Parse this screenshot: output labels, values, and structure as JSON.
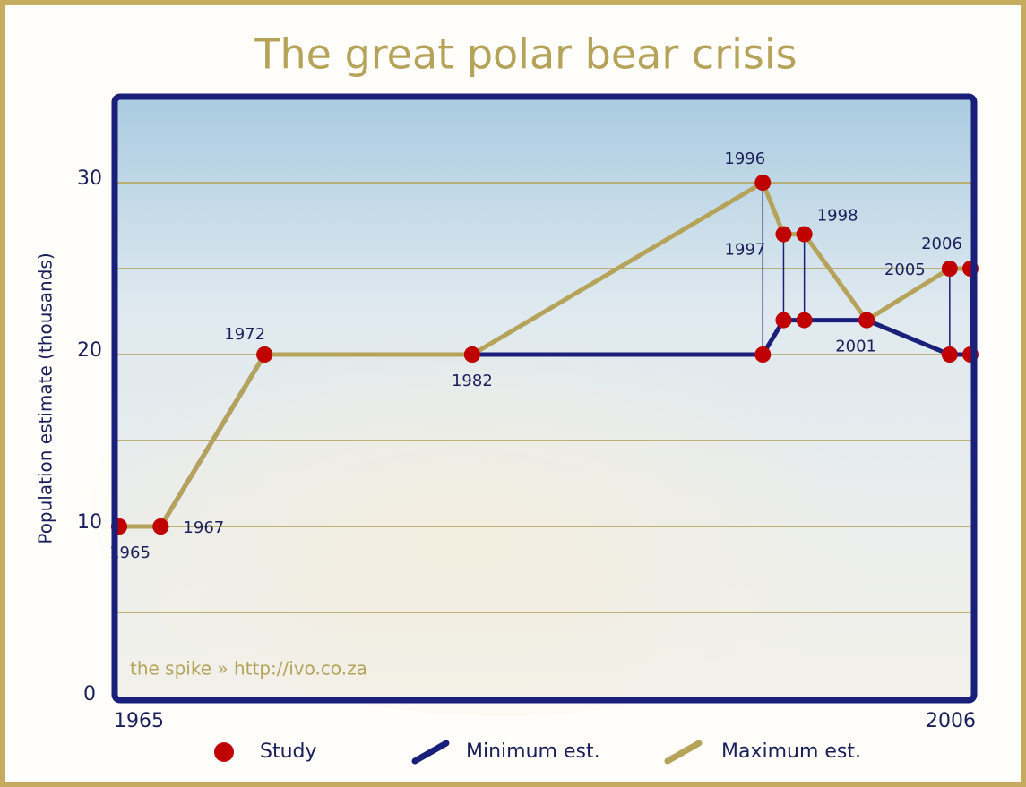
{
  "chart_data": {
    "type": "line",
    "title": "The great polar bear crisis",
    "y_label": "Population estimate (thousands)",
    "watermark": "the spike » http://ivo.co.za",
    "x": [
      1965,
      1967,
      1972,
      1982,
      1996,
      1997,
      1998,
      2001,
      2005,
      2006
    ],
    "series": [
      {
        "name": "Minimum est.",
        "color": "#1a1f7a",
        "values": [
          10,
          10,
          20,
          20,
          20,
          22,
          22,
          22,
          20,
          20
        ]
      },
      {
        "name": "Maximum est.",
        "color": "#b5a35a",
        "values": [
          10,
          10,
          20,
          20,
          30,
          27,
          27,
          22,
          25,
          25
        ]
      }
    ],
    "markers": {
      "name": "Study",
      "color": "#c00000"
    },
    "xlim": [
      1965,
      2006
    ],
    "xticks": [
      1965,
      2006
    ],
    "ylim": [
      0,
      35
    ],
    "yticks": [
      0,
      10,
      20,
      30
    ],
    "grid_lines": [
      5,
      10,
      15,
      20,
      25,
      30
    ],
    "grid": true
  }
}
